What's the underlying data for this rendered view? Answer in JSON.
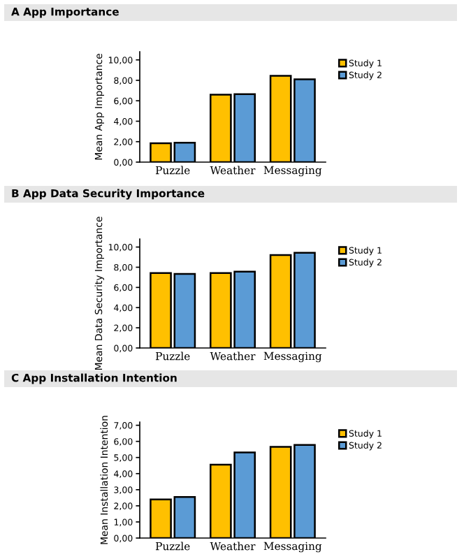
{
  "chart_data": [
    {
      "type": "bar",
      "title": "A App Importance",
      "ylabel": "Mean App Importance",
      "categories": [
        "Puzzle",
        "Weather",
        "Messaging"
      ],
      "series": [
        {
          "name": "Study 1",
          "color": "#ffc000",
          "values": [
            1.85,
            6.6,
            8.45
          ]
        },
        {
          "name": "Study 2",
          "color": "#5b9bd5",
          "values": [
            1.9,
            6.65,
            8.1
          ]
        }
      ],
      "ylim": [
        0,
        10.8
      ],
      "yticks": [
        {
          "value": 0,
          "label": "0,00"
        },
        {
          "value": 2,
          "label": "2,00"
        },
        {
          "value": 4,
          "label": "4,00"
        },
        {
          "value": 6,
          "label": "6,00"
        },
        {
          "value": 8,
          "label": "8,00"
        },
        {
          "value": 10,
          "label": "10,00"
        }
      ],
      "legend": "right"
    },
    {
      "type": "bar",
      "title": "B App Data Security Importance",
      "ylabel": "Mean Data Security Importance",
      "categories": [
        "Puzzle",
        "Weather",
        "Messaging"
      ],
      "series": [
        {
          "name": "Study 1",
          "color": "#ffc000",
          "values": [
            7.43,
            7.43,
            9.2
          ]
        },
        {
          "name": "Study 2",
          "color": "#5b9bd5",
          "values": [
            7.34,
            7.57,
            9.44
          ]
        }
      ],
      "ylim": [
        0,
        10.8
      ],
      "yticks": [
        {
          "value": 0,
          "label": "0,00"
        },
        {
          "value": 2,
          "label": "2,00"
        },
        {
          "value": 4,
          "label": "4,00"
        },
        {
          "value": 6,
          "label": "6,00"
        },
        {
          "value": 8,
          "label": "8,00"
        },
        {
          "value": 10,
          "label": "10,00"
        }
      ],
      "legend": "right"
    },
    {
      "type": "bar",
      "title": "C App Installation Intention",
      "ylabel": "Mean Installation Intention",
      "categories": [
        "Puzzle",
        "Weather",
        "Messaging"
      ],
      "series": [
        {
          "name": "Study 1",
          "color": "#ffc000",
          "values": [
            2.4,
            4.55,
            5.66
          ]
        },
        {
          "name": "Study 2",
          "color": "#5b9bd5",
          "values": [
            2.55,
            5.31,
            5.78
          ]
        }
      ],
      "ylim": [
        0,
        7.2
      ],
      "yticks": [
        {
          "value": 0,
          "label": "0,00"
        },
        {
          "value": 1,
          "label": "1,00"
        },
        {
          "value": 2,
          "label": "2,00"
        },
        {
          "value": 3,
          "label": "3,00"
        },
        {
          "value": 4,
          "label": "4,00"
        },
        {
          "value": 5,
          "label": "5,00"
        },
        {
          "value": 6,
          "label": "6,00"
        },
        {
          "value": 7,
          "label": "7,00"
        }
      ],
      "legend": "right"
    }
  ]
}
